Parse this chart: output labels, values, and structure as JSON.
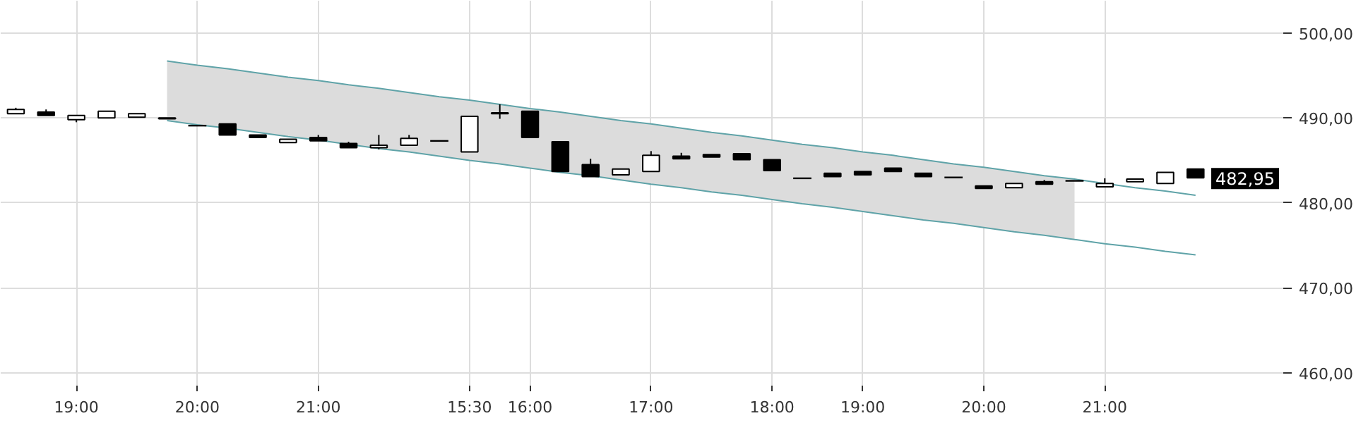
{
  "chart_data": {
    "type": "candlestick",
    "categories": [
      null,
      null,
      "19:00",
      null,
      null,
      null,
      "20:00",
      null,
      null,
      null,
      "21:00",
      null,
      null,
      null,
      null,
      "15:30",
      null,
      "16:00",
      null,
      null,
      null,
      "17:00",
      null,
      null,
      null,
      "18:00",
      null,
      null,
      "19:00",
      null,
      null,
      null,
      "20:00",
      null,
      null,
      null,
      "21:00",
      null,
      null,
      null
    ],
    "ohlc": [
      [
        490.5,
        491.2,
        490.5,
        491.0
      ],
      [
        490.7,
        491.0,
        490.3,
        490.3
      ],
      [
        489.8,
        490.3,
        489.5,
        490.3
      ],
      [
        490.0,
        490.8,
        490.0,
        490.8
      ],
      [
        490.1,
        490.5,
        490.1,
        490.5
      ],
      [
        490.0,
        490.0,
        489.9,
        489.9
      ],
      [
        489.1,
        489.1,
        489.1,
        489.1
      ],
      [
        489.3,
        489.3,
        488.0,
        488.0
      ],
      [
        488.0,
        488.0,
        487.7,
        487.7
      ],
      [
        487.1,
        487.5,
        487.1,
        487.5
      ],
      [
        487.7,
        488.0,
        487.3,
        487.3
      ],
      [
        487.0,
        487.2,
        486.5,
        486.5
      ],
      [
        486.5,
        488.0,
        486.3,
        486.8
      ],
      [
        486.8,
        488.0,
        486.8,
        487.6
      ],
      [
        487.3,
        487.3,
        487.3,
        487.3
      ],
      [
        486.0,
        490.2,
        486.0,
        490.2
      ],
      [
        490.5,
        491.6,
        489.9,
        490.6
      ],
      [
        490.8,
        490.8,
        487.7,
        487.7
      ],
      [
        487.2,
        487.2,
        483.7,
        483.7
      ],
      [
        484.5,
        485.2,
        483.1,
        483.1
      ],
      [
        483.3,
        484.0,
        483.3,
        484.0
      ],
      [
        483.7,
        486.1,
        483.7,
        485.6
      ],
      [
        485.5,
        485.9,
        485.2,
        485.2
      ],
      [
        485.7,
        485.7,
        485.4,
        485.4
      ],
      [
        485.8,
        485.8,
        485.1,
        485.1
      ],
      [
        485.1,
        485.1,
        483.8,
        483.8
      ],
      [
        482.9,
        482.9,
        482.9,
        482.9
      ],
      [
        483.5,
        483.5,
        483.1,
        483.1
      ],
      [
        483.7,
        483.7,
        483.3,
        483.3
      ],
      [
        484.1,
        484.1,
        483.7,
        483.7
      ],
      [
        483.5,
        483.5,
        483.1,
        483.1
      ],
      [
        483.0,
        483.0,
        483.0,
        483.0
      ],
      [
        482.0,
        482.0,
        481.7,
        481.7
      ],
      [
        481.8,
        482.3,
        481.8,
        482.3
      ],
      [
        482.5,
        482.7,
        482.2,
        482.2
      ],
      [
        482.6,
        482.6,
        482.6,
        482.6
      ],
      [
        481.9,
        482.9,
        481.9,
        482.3
      ],
      [
        482.5,
        482.8,
        482.5,
        482.8
      ],
      [
        482.3,
        483.6,
        482.3,
        483.6
      ],
      [
        484.0,
        484.0,
        482.95,
        482.95
      ]
    ],
    "colors": [
      "#ffffff",
      "#000000",
      "#ffffff",
      "#ffffff",
      "#ffffff",
      "#000000",
      "#000000",
      "#000000",
      "#000000",
      "#ffffff",
      "#000000",
      "#000000",
      "#ffffff",
      "#ffffff",
      "#000000",
      "#ffffff",
      "#ffffff",
      "#000000",
      "#000000",
      "#000000",
      "#ffffff",
      "#ffffff",
      "#000000",
      "#000000",
      "#000000",
      "#000000",
      "#000000",
      "#000000",
      "#000000",
      "#000000",
      "#000000",
      "#000000",
      "#000000",
      "#ffffff",
      "#000000",
      "#000000",
      "#ffffff",
      "#ffffff",
      "#ffffff",
      "#000000"
    ],
    "series": [
      {
        "type": "line",
        "color": "#5fa3a8",
        "values": [
          null,
          null,
          null,
          null,
          null,
          496.7,
          496.2,
          495.8,
          495.3,
          494.8,
          494.4,
          493.9,
          493.5,
          493.0,
          492.5,
          492.1,
          491.6,
          491.1,
          490.7,
          490.2,
          489.7,
          489.3,
          488.8,
          488.3,
          487.9,
          487.4,
          486.9,
          486.5,
          486.0,
          485.6,
          485.1,
          484.6,
          484.2,
          483.7,
          483.2,
          482.8,
          482.3,
          481.8,
          481.4,
          480.9
        ],
        "upper": [
          null,
          null,
          null,
          null,
          null,
          496.7,
          496.2,
          495.8,
          495.3,
          494.8,
          494.4,
          493.9,
          493.5,
          493.0,
          492.5,
          492.1,
          491.6,
          491.1,
          490.7,
          490.2,
          489.7,
          489.3,
          488.8,
          488.3,
          487.9,
          487.4,
          486.9,
          486.5,
          486.0,
          485.6,
          485.1,
          484.6,
          484.2,
          483.7,
          483.2,
          482.8,
          null,
          null,
          null,
          null
        ],
        "lower": [
          null,
          null,
          null,
          null,
          null,
          489.7,
          489.2,
          488.8,
          488.3,
          487.8,
          487.4,
          486.9,
          486.4,
          486.0,
          485.5,
          485.0,
          484.6,
          484.1,
          483.6,
          483.2,
          482.7,
          482.2,
          481.8,
          481.3,
          480.9,
          480.4,
          479.9,
          479.5,
          479.0,
          478.5,
          478.0,
          477.6,
          477.1,
          476.6,
          476.2,
          475.7,
          null,
          null,
          null,
          null
        ]
      },
      {
        "type": "line",
        "color": "#5fa3a8",
        "values": [
          null,
          null,
          null,
          null,
          null,
          489.7,
          489.2,
          488.8,
          488.3,
          487.8,
          487.4,
          486.9,
          486.4,
          486.0,
          485.5,
          485.0,
          484.6,
          484.1,
          483.6,
          483.2,
          482.7,
          482.2,
          481.8,
          481.3,
          480.9,
          480.4,
          479.9,
          479.5,
          479.0,
          478.5,
          478.0,
          477.6,
          477.1,
          476.6,
          476.2,
          475.7,
          475.2,
          474.8,
          474.3,
          473.9
        ]
      }
    ],
    "ylim": [
      458.5,
      503.8
    ],
    "yticks": [
      {
        "value": 460,
        "label": "460,00"
      },
      {
        "value": 470,
        "label": "470,00"
      },
      {
        "value": 480,
        "label": "480,00"
      },
      {
        "value": 490,
        "label": "490,00"
      },
      {
        "value": 500,
        "label": "500,00"
      }
    ],
    "grid": true,
    "annotations": [
      "482,95"
    ]
  }
}
